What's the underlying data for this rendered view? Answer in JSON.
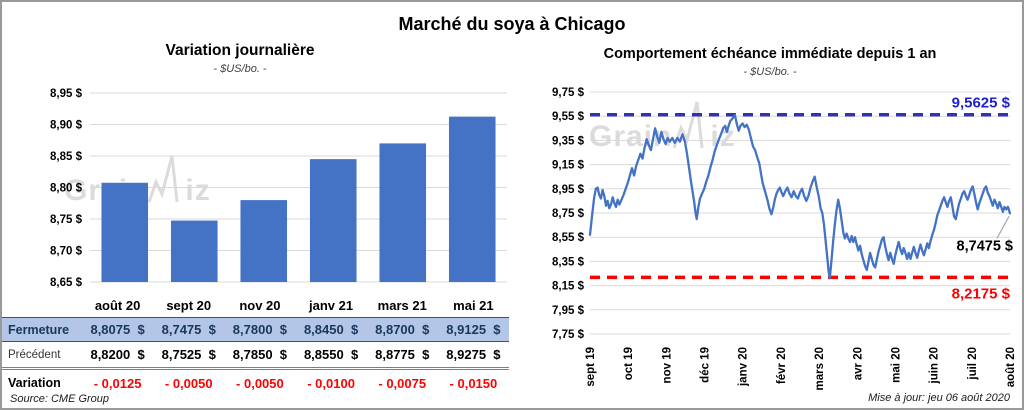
{
  "page": {
    "title": "Marché du soya à Chicago",
    "source": "Source: CME Group",
    "updated": "Mise à jour: jeu 06 août 2020",
    "watermark_left": "Grain",
    "watermark_right": "iz"
  },
  "colors": {
    "bar": "#4472C4",
    "line": "#4472C4",
    "grid": "#D9D9D9",
    "hline_max": "#3333B2",
    "hline_max_label": "#2222CC",
    "hline_min": "#FF0000",
    "hline_min_label": "#FF0000",
    "fermeture_bg": "#B4C6E7",
    "fermeture_text": "#17375D",
    "variation_text": "#FF0000",
    "leader": "#A6A6A6"
  },
  "chart_data": [
    {
      "type": "bar",
      "title": "Variation  journalière",
      "subtitle": "- $US/bo. -",
      "categories": [
        "août 20",
        "sept 20",
        "nov 20",
        "janv 21",
        "mars 21",
        "mai 21"
      ],
      "values": [
        8.8075,
        8.7475,
        8.78,
        8.845,
        8.87,
        8.9125
      ],
      "ylim": [
        8.65,
        8.95
      ],
      "ytick_step": 0.05,
      "ytick_labels": [
        "8,95 $",
        "8,90 $",
        "8,85 $",
        "8,80 $",
        "8,75 $",
        "8,70 $",
        "8,65 $"
      ],
      "grid": true,
      "legend": "none"
    },
    {
      "type": "line",
      "title": "Comportement  échéance immédiate depuis 1 an",
      "subtitle": "- $US/bo. -",
      "x_labels": [
        "sept 19",
        "oct 19",
        "nov 19",
        "déc 19",
        "janv 20",
        "févr 20",
        "mars 20",
        "avr 20",
        "mai 20",
        "juin 20",
        "juil 20",
        "août 20"
      ],
      "ylim": [
        7.75,
        9.75
      ],
      "ytick_step": 0.2,
      "ytick_labels": [
        "9,75 $",
        "9,55 $",
        "9,35 $",
        "9,15 $",
        "8,95 $",
        "8,75 $",
        "8,55 $",
        "8,35 $",
        "8,15 $",
        "7,95 $",
        "7,75 $"
      ],
      "grid": true,
      "legend": "none",
      "hlines": [
        {
          "value": 9.5625,
          "label": "9,5625 $",
          "position": "above"
        },
        {
          "value": 8.2175,
          "label": "8,2175 $",
          "position": "below"
        }
      ],
      "end_label": {
        "value": 8.7475,
        "label": "8,7475 $"
      },
      "series": [
        {
          "name": "échéance immédiate",
          "points": [
            [
              0.0,
              8.57
            ],
            [
              0.005,
              8.73
            ],
            [
              0.01,
              8.88
            ],
            [
              0.014,
              8.95
            ],
            [
              0.018,
              8.96
            ],
            [
              0.022,
              8.9
            ],
            [
              0.026,
              8.87
            ],
            [
              0.03,
              8.94
            ],
            [
              0.034,
              8.89
            ],
            [
              0.038,
              8.81
            ],
            [
              0.042,
              8.85
            ],
            [
              0.046,
              8.79
            ],
            [
              0.05,
              8.82
            ],
            [
              0.054,
              8.88
            ],
            [
              0.058,
              8.83
            ],
            [
              0.062,
              8.8
            ],
            [
              0.066,
              8.86
            ],
            [
              0.07,
              8.82
            ],
            [
              0.075,
              8.86
            ],
            [
              0.08,
              8.9
            ],
            [
              0.085,
              8.95
            ],
            [
              0.09,
              9.0
            ],
            [
              0.095,
              9.06
            ],
            [
              0.1,
              9.12
            ],
            [
              0.105,
              9.06
            ],
            [
              0.11,
              9.14
            ],
            [
              0.115,
              9.19
            ],
            [
              0.12,
              9.24
            ],
            [
              0.125,
              9.2
            ],
            [
              0.13,
              9.29
            ],
            [
              0.135,
              9.36
            ],
            [
              0.14,
              9.31
            ],
            [
              0.145,
              9.27
            ],
            [
              0.15,
              9.36
            ],
            [
              0.155,
              9.45
            ],
            [
              0.16,
              9.38
            ],
            [
              0.165,
              9.33
            ],
            [
              0.17,
              9.42
            ],
            [
              0.175,
              9.36
            ],
            [
              0.18,
              9.32
            ],
            [
              0.185,
              9.37
            ],
            [
              0.19,
              9.34
            ],
            [
              0.196,
              9.37
            ],
            [
              0.202,
              9.33
            ],
            [
              0.208,
              9.37
            ],
            [
              0.214,
              9.34
            ],
            [
              0.22,
              9.4
            ],
            [
              0.226,
              9.34
            ],
            [
              0.231,
              9.24
            ],
            [
              0.236,
              9.12
            ],
            [
              0.24,
              9.02
            ],
            [
              0.244,
              8.93
            ],
            [
              0.248,
              8.84
            ],
            [
              0.251,
              8.76
            ],
            [
              0.254,
              8.7
            ],
            [
              0.258,
              8.8
            ],
            [
              0.262,
              8.87
            ],
            [
              0.267,
              8.91
            ],
            [
              0.272,
              8.95
            ],
            [
              0.277,
              9.01
            ],
            [
              0.282,
              9.06
            ],
            [
              0.287,
              9.13
            ],
            [
              0.292,
              9.19
            ],
            [
              0.297,
              9.26
            ],
            [
              0.302,
              9.31
            ],
            [
              0.307,
              9.36
            ],
            [
              0.312,
              9.4
            ],
            [
              0.317,
              9.45
            ],
            [
              0.322,
              9.47
            ],
            [
              0.326,
              9.42
            ],
            [
              0.33,
              9.47
            ],
            [
              0.334,
              9.51
            ],
            [
              0.339,
              9.53
            ],
            [
              0.345,
              9.56
            ],
            [
              0.35,
              9.48
            ],
            [
              0.354,
              9.43
            ],
            [
              0.358,
              9.47
            ],
            [
              0.363,
              9.49
            ],
            [
              0.368,
              9.46
            ],
            [
              0.373,
              9.48
            ],
            [
              0.378,
              9.44
            ],
            [
              0.383,
              9.37
            ],
            [
              0.388,
              9.3
            ],
            [
              0.393,
              9.27
            ],
            [
              0.398,
              9.21
            ],
            [
              0.403,
              9.16
            ],
            [
              0.407,
              9.08
            ],
            [
              0.411,
              9.0
            ],
            [
              0.415,
              8.95
            ],
            [
              0.419,
              8.9
            ],
            [
              0.423,
              8.85
            ],
            [
              0.427,
              8.79
            ],
            [
              0.432,
              8.74
            ],
            [
              0.436,
              8.79
            ],
            [
              0.44,
              8.86
            ],
            [
              0.444,
              8.91
            ],
            [
              0.448,
              8.94
            ],
            [
              0.452,
              8.96
            ],
            [
              0.456,
              8.92
            ],
            [
              0.46,
              8.89
            ],
            [
              0.465,
              8.93
            ],
            [
              0.47,
              8.96
            ],
            [
              0.475,
              8.91
            ],
            [
              0.48,
              8.88
            ],
            [
              0.485,
              8.93
            ],
            [
              0.49,
              8.89
            ],
            [
              0.495,
              8.87
            ],
            [
              0.5,
              8.92
            ],
            [
              0.505,
              8.95
            ],
            [
              0.51,
              8.89
            ],
            [
              0.515,
              8.85
            ],
            [
              0.52,
              8.89
            ],
            [
              0.525,
              8.96
            ],
            [
              0.53,
              9.01
            ],
            [
              0.535,
              9.05
            ],
            [
              0.54,
              8.96
            ],
            [
              0.545,
              8.88
            ],
            [
              0.549,
              8.79
            ],
            [
              0.553,
              8.75
            ],
            [
              0.557,
              8.66
            ],
            [
              0.561,
              8.52
            ],
            [
              0.565,
              8.38
            ],
            [
              0.568,
              8.27
            ],
            [
              0.571,
              8.21
            ],
            [
              0.575,
              8.36
            ],
            [
              0.579,
              8.52
            ],
            [
              0.583,
              8.66
            ],
            [
              0.587,
              8.77
            ],
            [
              0.591,
              8.86
            ],
            [
              0.595,
              8.79
            ],
            [
              0.599,
              8.69
            ],
            [
              0.603,
              8.59
            ],
            [
              0.607,
              8.54
            ],
            [
              0.611,
              8.58
            ],
            [
              0.615,
              8.54
            ],
            [
              0.619,
              8.51
            ],
            [
              0.623,
              8.56
            ],
            [
              0.627,
              8.51
            ],
            [
              0.631,
              8.55
            ],
            [
              0.635,
              8.49
            ],
            [
              0.639,
              8.44
            ],
            [
              0.643,
              8.48
            ],
            [
              0.647,
              8.41
            ],
            [
              0.651,
              8.36
            ],
            [
              0.655,
              8.31
            ],
            [
              0.659,
              8.28
            ],
            [
              0.663,
              8.35
            ],
            [
              0.667,
              8.42
            ],
            [
              0.671,
              8.37
            ],
            [
              0.675,
              8.32
            ],
            [
              0.679,
              8.3
            ],
            [
              0.683,
              8.37
            ],
            [
              0.687,
              8.43
            ],
            [
              0.691,
              8.48
            ],
            [
              0.695,
              8.53
            ],
            [
              0.699,
              8.55
            ],
            [
              0.703,
              8.47
            ],
            [
              0.707,
              8.41
            ],
            [
              0.711,
              8.36
            ],
            [
              0.715,
              8.42
            ],
            [
              0.719,
              8.37
            ],
            [
              0.723,
              8.33
            ],
            [
              0.727,
              8.4
            ],
            [
              0.731,
              8.46
            ],
            [
              0.735,
              8.51
            ],
            [
              0.739,
              8.45
            ],
            [
              0.743,
              8.41
            ],
            [
              0.747,
              8.46
            ],
            [
              0.751,
              8.42
            ],
            [
              0.755,
              8.37
            ],
            [
              0.759,
              8.42
            ],
            [
              0.763,
              8.37
            ],
            [
              0.767,
              8.42
            ],
            [
              0.771,
              8.47
            ],
            [
              0.775,
              8.42
            ],
            [
              0.779,
              8.38
            ],
            [
              0.783,
              8.44
            ],
            [
              0.787,
              8.49
            ],
            [
              0.791,
              8.44
            ],
            [
              0.795,
              8.4
            ],
            [
              0.799,
              8.45
            ],
            [
              0.803,
              8.5
            ],
            [
              0.807,
              8.46
            ],
            [
              0.811,
              8.52
            ],
            [
              0.815,
              8.57
            ],
            [
              0.819,
              8.61
            ],
            [
              0.823,
              8.67
            ],
            [
              0.827,
              8.73
            ],
            [
              0.831,
              8.77
            ],
            [
              0.835,
              8.81
            ],
            [
              0.839,
              8.85
            ],
            [
              0.843,
              8.88
            ],
            [
              0.847,
              8.84
            ],
            [
              0.851,
              8.8
            ],
            [
              0.855,
              8.85
            ],
            [
              0.859,
              8.88
            ],
            [
              0.863,
              8.8
            ],
            [
              0.867,
              8.72
            ],
            [
              0.871,
              8.7
            ],
            [
              0.875,
              8.77
            ],
            [
              0.879,
              8.83
            ],
            [
              0.883,
              8.87
            ],
            [
              0.887,
              8.91
            ],
            [
              0.891,
              8.93
            ],
            [
              0.895,
              8.89
            ],
            [
              0.899,
              8.86
            ],
            [
              0.903,
              8.9
            ],
            [
              0.907,
              8.94
            ],
            [
              0.911,
              8.97
            ],
            [
              0.915,
              8.91
            ],
            [
              0.919,
              8.84
            ],
            [
              0.923,
              8.78
            ],
            [
              0.927,
              8.83
            ],
            [
              0.931,
              8.87
            ],
            [
              0.935,
              8.91
            ],
            [
              0.939,
              8.95
            ],
            [
              0.943,
              8.97
            ],
            [
              0.947,
              8.92
            ],
            [
              0.951,
              8.89
            ],
            [
              0.955,
              8.85
            ],
            [
              0.959,
              8.81
            ],
            [
              0.963,
              8.86
            ],
            [
              0.967,
              8.83
            ],
            [
              0.971,
              8.79
            ],
            [
              0.975,
              8.84
            ],
            [
              0.979,
              8.8
            ],
            [
              0.983,
              8.76
            ],
            [
              0.987,
              8.8
            ],
            [
              0.991,
              8.78
            ],
            [
              0.995,
              8.8
            ],
            [
              1.0,
              8.7475
            ]
          ]
        }
      ]
    }
  ],
  "table": {
    "columns": [
      "août 20",
      "sept 20",
      "nov 20",
      "janv 21",
      "mars 21",
      "mai 21"
    ],
    "rows": [
      {
        "label": "Fermeture",
        "values": [
          "8,8075  $",
          "8,7475  $",
          "8,7800  $",
          "8,8450  $",
          "8,8700  $",
          "8,9125  $"
        ]
      },
      {
        "label": "Précédent",
        "values": [
          "8,8200  $",
          "8,7525  $",
          "8,7850  $",
          "8,8550  $",
          "8,8775  $",
          "8,9275  $"
        ]
      },
      {
        "label": "Variation",
        "values": [
          "- 0,0125",
          "- 0,0050",
          "- 0,0050",
          "- 0,0100",
          "- 0,0075",
          "- 0,0150"
        ]
      }
    ]
  }
}
